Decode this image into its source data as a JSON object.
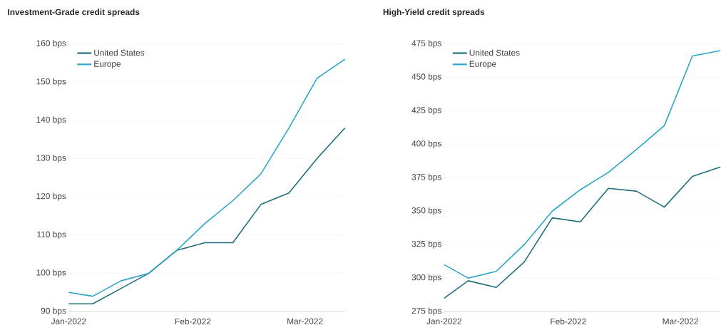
{
  "chart_data": [
    {
      "type": "line",
      "title": "Investment-Grade credit spreads",
      "x": [
        "2022-01-01",
        "2022-01-07",
        "2022-01-14",
        "2022-01-21",
        "2022-01-28",
        "2022-02-04",
        "2022-02-11",
        "2022-02-18",
        "2022-02-25",
        "2022-03-04",
        "2022-03-11"
      ],
      "series": [
        {
          "name": "United States",
          "color": "#1f6e7a",
          "values": [
            92,
            92,
            96,
            100,
            106,
            108,
            108,
            118,
            121,
            130,
            138
          ]
        },
        {
          "name": "Europe",
          "color": "#2aa5c9",
          "values": [
            95,
            94,
            98,
            100,
            106,
            113,
            119,
            126,
            138,
            151,
            156
          ]
        }
      ],
      "xlim": [
        "2022-01-01",
        "2022-03-11"
      ],
      "xticks": [
        {
          "value": "2022-01-01",
          "label": "Jan-2022"
        },
        {
          "value": "2022-02-01",
          "label": "Feb-2022"
        },
        {
          "value": "2022-03-01",
          "label": "Mar-2022"
        }
      ],
      "ylim": [
        90,
        160
      ],
      "yticks": [
        {
          "value": 90,
          "label": "90 bps"
        },
        {
          "value": 100,
          "label": "100 bps"
        },
        {
          "value": 110,
          "label": "110 bps"
        },
        {
          "value": 120,
          "label": "120 bps"
        },
        {
          "value": 130,
          "label": "130 bps"
        },
        {
          "value": 140,
          "label": "140 bps"
        },
        {
          "value": 150,
          "label": "150 bps"
        },
        {
          "value": 160,
          "label": "160 bps"
        }
      ],
      "grid": "y",
      "legend": "top left"
    },
    {
      "type": "line",
      "title": "High-Yield credit spreads",
      "x": [
        "2022-01-01",
        "2022-01-07",
        "2022-01-14",
        "2022-01-21",
        "2022-01-28",
        "2022-02-04",
        "2022-02-11",
        "2022-02-18",
        "2022-02-25",
        "2022-03-04",
        "2022-03-11"
      ],
      "series": [
        {
          "name": "United States",
          "color": "#1f6e7a",
          "values": [
            285,
            298,
            293,
            312,
            345,
            342,
            367,
            365,
            353,
            376,
            383
          ]
        },
        {
          "name": "Europe",
          "color": "#2aa5c9",
          "values": [
            310,
            300,
            305,
            325,
            350,
            366,
            379,
            396,
            414,
            466,
            470
          ]
        }
      ],
      "xlim": [
        "2022-01-01",
        "2022-03-11"
      ],
      "xticks": [
        {
          "value": "2022-01-01",
          "label": "Jan-2022"
        },
        {
          "value": "2022-02-01",
          "label": "Feb-2022"
        },
        {
          "value": "2022-03-01",
          "label": "Mar-2022"
        }
      ],
      "ylim": [
        275,
        475
      ],
      "yticks": [
        {
          "value": 275,
          "label": "275 bps"
        },
        {
          "value": 300,
          "label": "300 bps"
        },
        {
          "value": 325,
          "label": "325 bps"
        },
        {
          "value": 350,
          "label": "350 bps"
        },
        {
          "value": 375,
          "label": "375 bps"
        },
        {
          "value": 400,
          "label": "400 bps"
        },
        {
          "value": 425,
          "label": "425 bps"
        },
        {
          "value": 450,
          "label": "450 bps"
        },
        {
          "value": 475,
          "label": "475 bps"
        }
      ],
      "grid": "y",
      "legend": "top left"
    }
  ]
}
